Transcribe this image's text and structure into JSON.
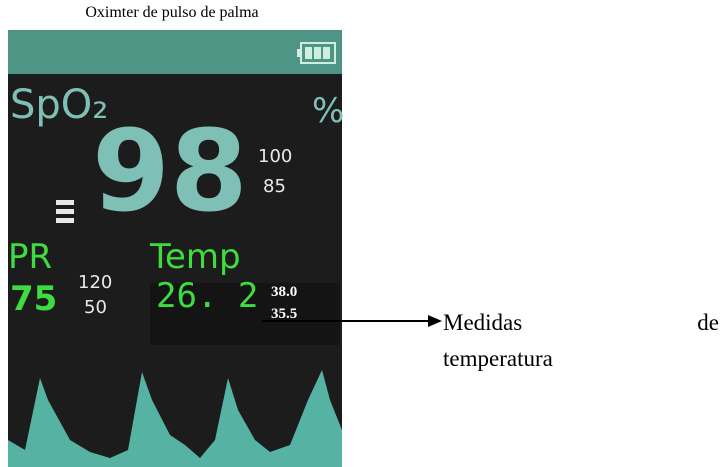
{
  "title": "Oximter de pulso de palma",
  "screen": {
    "spo2_label": "SpO₂",
    "unit": "%",
    "spo2_value": "98",
    "spo2_high": "100",
    "spo2_low": "85",
    "pr_label": "PR",
    "pr_value": "75",
    "pr_high": "120",
    "pr_low": "50",
    "temp_label": "Temp",
    "temp_value": "26. 2",
    "temp_high": "38.0",
    "temp_low": "35.5"
  },
  "annotation": {
    "lines": [
      "Medidas de",
      "temperatura"
    ]
  }
}
